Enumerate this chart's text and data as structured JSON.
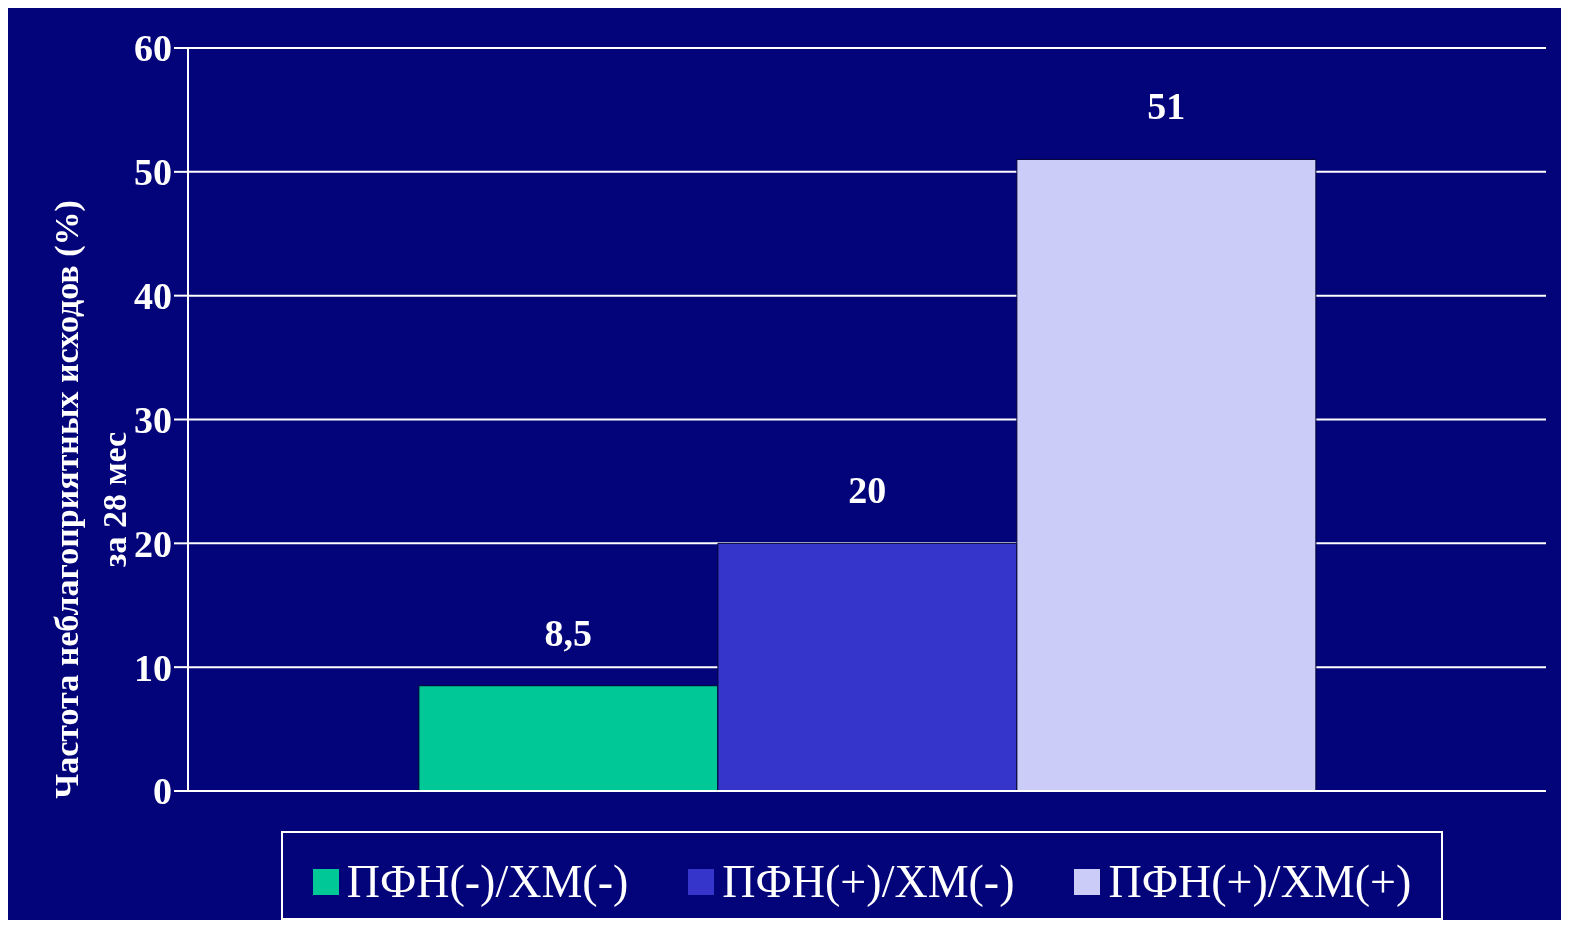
{
  "chart_data": {
    "type": "bar",
    "ylabel": "Частота неблагоприятных исходов (%)\nза 28 мес",
    "categories": [
      null
    ],
    "series": [
      {
        "name": "ПФН(-)/ХМ(-)",
        "color": "#00c896",
        "values": [
          8.5
        ],
        "value_labels": [
          "8,5"
        ]
      },
      {
        "name": "ПФН(+)/ХМ(-)",
        "color": "#3535cc",
        "values": [
          20
        ],
        "value_labels": [
          "20"
        ]
      },
      {
        "name": "ПФН(+)/ХМ(+)",
        "color": "#ccccf8",
        "values": [
          51
        ],
        "value_labels": [
          "51"
        ]
      }
    ],
    "ylim": [
      0,
      60
    ],
    "yticks": [
      0,
      10,
      20,
      30,
      40,
      50,
      60
    ],
    "grid": "y",
    "legend": "bottom"
  }
}
